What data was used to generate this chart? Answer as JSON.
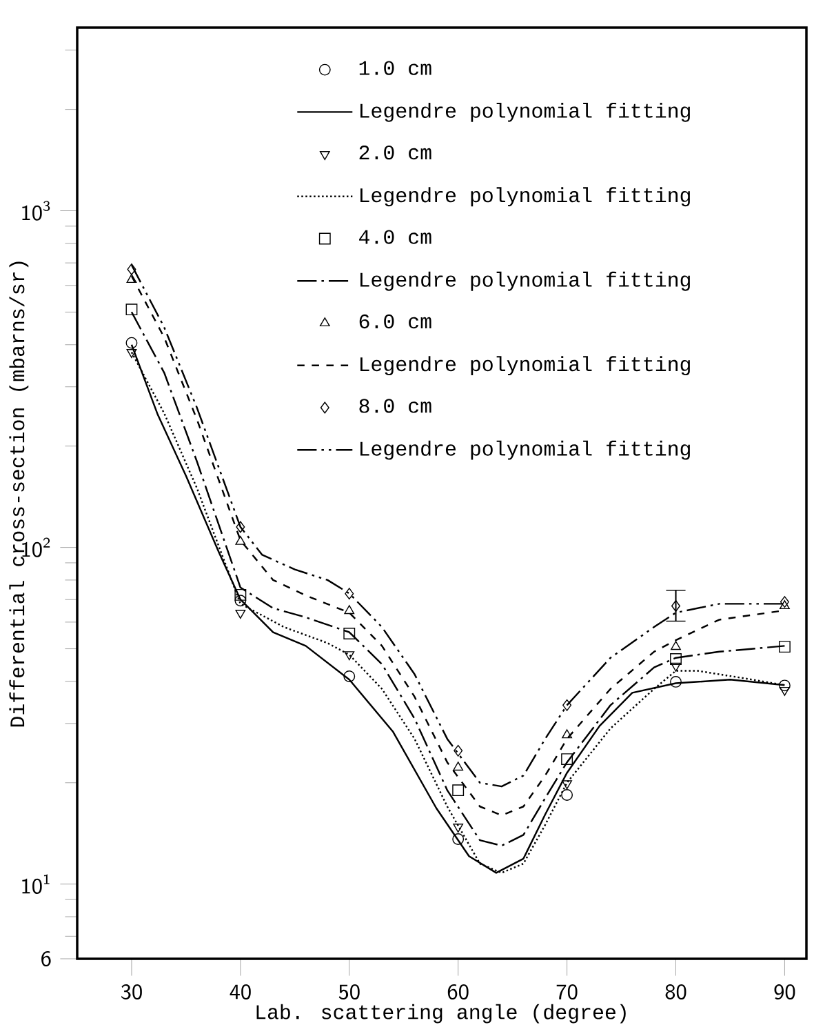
{
  "chart_data": {
    "type": "scatter",
    "xlabel": "Lab. scattering angle (degree)",
    "ylabel": "Differential cross-section (mbarns/sr)",
    "log": "y",
    "xlim": [
      25,
      92
    ],
    "ylim": [
      6,
      3500
    ],
    "xticks": [
      30,
      40,
      50,
      60,
      70,
      80,
      90
    ],
    "yticks": [
      {
        "value": 6,
        "label": "6"
      },
      {
        "value": 10,
        "label": "10$^{1}$"
      },
      {
        "value": 100,
        "label": "10$^{2}$"
      },
      {
        "value": 1000,
        "label": "10$^{3}$"
      }
    ],
    "grid": false,
    "legend": "top right",
    "series": [
      {
        "name": "1.0 cm",
        "marker": "circle",
        "color": "#000000",
        "x": [
          30,
          40,
          50,
          60,
          70,
          80,
          90
        ],
        "values": [
          405,
          69.5,
          41.4,
          13.6,
          18.4,
          39.9,
          38.9
        ]
      },
      {
        "name": "Legendre polynomial fitting",
        "type": "line",
        "marker": "none",
        "line_style": "solid",
        "color": "#000000",
        "x": [
          30,
          32.4,
          35,
          38,
          40,
          43,
          46,
          50,
          54,
          58,
          61,
          63.5,
          66,
          68,
          70,
          73,
          76,
          80,
          85,
          90
        ],
        "values": [
          400,
          248,
          163,
          97,
          70,
          56,
          51,
          40.5,
          28.4,
          16.8,
          12.1,
          10.8,
          11.9,
          16.1,
          21.4,
          29.5,
          37,
          39.5,
          40.5,
          39
        ]
      },
      {
        "name": "2.0 cm",
        "type": "scatter",
        "marker": "triangle-down",
        "color": "#000000",
        "x": [
          30,
          40,
          50,
          60,
          70,
          80,
          90
        ],
        "values": [
          380,
          63.9,
          48.1,
          14.8,
          19.9,
          44.5,
          37.7
        ]
      },
      {
        "name": "Legendre polynomial fitting",
        "type": "line",
        "marker": "none",
        "line_style": "dotted",
        "color": "#000000",
        "x": [
          30,
          33,
          36,
          40,
          44,
          48,
          50,
          53,
          56,
          59,
          62,
          64,
          66,
          68,
          70,
          74,
          78,
          80,
          82,
          86,
          90
        ],
        "values": [
          380,
          250,
          150,
          68,
          58,
          52,
          48,
          38,
          27,
          17,
          11.5,
          10.8,
          11.5,
          15,
          20,
          29,
          38,
          43,
          43,
          41,
          39
        ]
      },
      {
        "name": "4.0 cm",
        "type": "scatter",
        "marker": "square",
        "color": "#000000",
        "x": [
          30,
          40,
          50,
          60,
          70,
          80,
          90
        ],
        "values": [
          509,
          72.3,
          55.5,
          19.0,
          23.5,
          46.6,
          50.7
        ]
      },
      {
        "name": "Legendre polynomial fitting",
        "type": "line",
        "marker": "none",
        "line_style": "dashdot",
        "color": "#000000",
        "x": [
          30,
          33,
          36,
          40,
          43,
          46,
          50,
          53,
          56,
          59,
          62,
          64,
          66,
          68,
          70,
          74,
          78,
          80,
          84,
          90
        ],
        "values": [
          500,
          330,
          180,
          76,
          66,
          62,
          56,
          45,
          31,
          19,
          13.5,
          13,
          14,
          18,
          23,
          34,
          44,
          47,
          49,
          51
        ]
      },
      {
        "name": "6.0 cm",
        "type": "scatter",
        "marker": "triangle",
        "color": "#000000",
        "x": [
          30,
          40,
          50,
          60,
          70,
          80,
          90
        ],
        "values": [
          624,
          104,
          64.8,
          22.2,
          27.7,
          50.7,
          67
        ]
      },
      {
        "name": "Legendre polynomial fitting",
        "type": "line",
        "marker": "none",
        "line_style": "dashed",
        "color": "#000000",
        "x": [
          30,
          33,
          36,
          40,
          43,
          46,
          50,
          53,
          56,
          59,
          62,
          64,
          66,
          68,
          70,
          74,
          78,
          80,
          84,
          90
        ],
        "values": [
          640,
          420,
          240,
          105,
          80,
          72,
          64,
          51,
          36,
          23,
          17,
          16,
          17,
          21,
          27,
          38,
          49,
          53,
          61,
          65
        ]
      },
      {
        "name": "8.0 cm",
        "type": "scatter",
        "marker": "diamond",
        "color": "#000000",
        "x": [
          30,
          40,
          50,
          60,
          70,
          80,
          90
        ],
        "values": [
          670,
          115,
          72.9,
          24.9,
          34,
          67,
          68.9
        ],
        "errors": [
          null,
          null,
          null,
          null,
          null,
          [
            60.4,
            74.6
          ],
          null
        ]
      },
      {
        "name": "Legendre polynomial fitting",
        "type": "line",
        "marker": "none",
        "line_style": "dashdotdot",
        "color": "#000000",
        "x": [
          30,
          33,
          36,
          40,
          42,
          45,
          48,
          50,
          53,
          56,
          59,
          62,
          64,
          66,
          68,
          70,
          74,
          78,
          80,
          84,
          90
        ],
        "values": [
          690,
          450,
          260,
          115,
          95,
          86,
          80,
          73,
          58,
          42,
          27,
          20,
          19.5,
          21,
          27,
          34,
          47,
          58,
          64,
          68,
          68
        ]
      }
    ]
  }
}
